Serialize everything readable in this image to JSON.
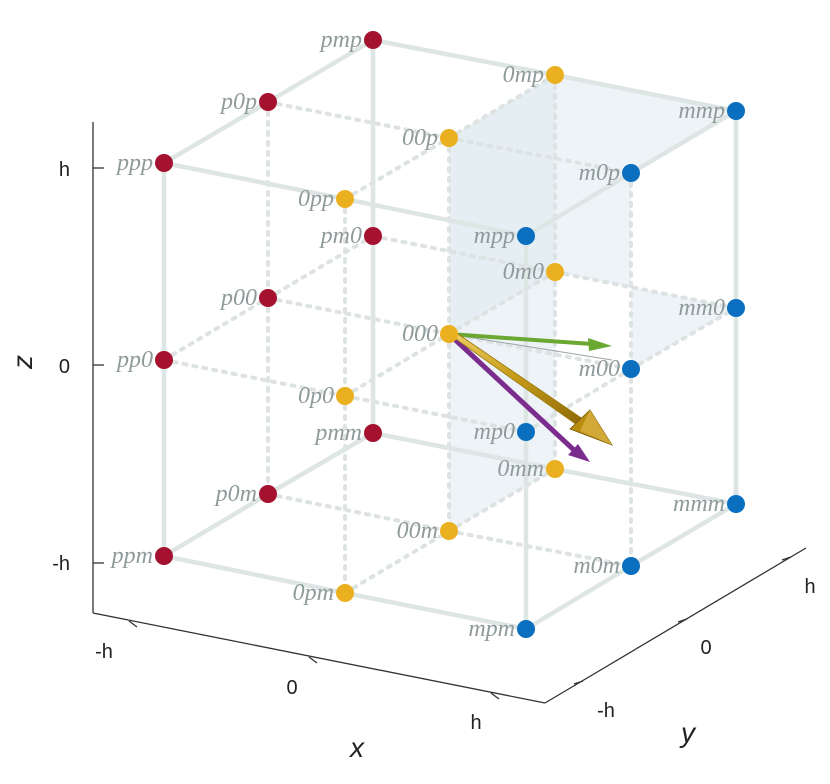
{
  "axes": {
    "x": {
      "title": "x",
      "ticks": [
        "-h",
        "0",
        "h"
      ]
    },
    "y": {
      "title": "y",
      "ticks": [
        "-h",
        "0",
        "h"
      ]
    },
    "z": {
      "title": "z",
      "ticks": [
        "-h",
        "0",
        "h"
      ]
    }
  },
  "colors": {
    "red": "#a4122f",
    "yellow": "#ebb020",
    "blue": "#0b6fbf",
    "edge": "#dde6e4",
    "label": "#8f9a9a",
    "arrow_green": "#6aa832",
    "arrow_gold": "#c69a18",
    "arrow_purple": "#7b2d8e",
    "plane": "#dfe9f0"
  },
  "nodes": [
    {
      "label": "ppp",
      "color": "red"
    },
    {
      "label": "p0p",
      "color": "red"
    },
    {
      "label": "pmp",
      "color": "red"
    },
    {
      "label": "pp0",
      "color": "red"
    },
    {
      "label": "p00",
      "color": "red"
    },
    {
      "label": "pm0",
      "color": "red"
    },
    {
      "label": "ppm",
      "color": "red"
    },
    {
      "label": "p0m",
      "color": "red"
    },
    {
      "label": "pmm",
      "color": "red"
    },
    {
      "label": "0pp",
      "color": "yellow"
    },
    {
      "label": "00p",
      "color": "yellow"
    },
    {
      "label": "0mp",
      "color": "yellow"
    },
    {
      "label": "0p0",
      "color": "yellow"
    },
    {
      "label": "000",
      "color": "yellow"
    },
    {
      "label": "0m0",
      "color": "yellow"
    },
    {
      "label": "0pm",
      "color": "yellow"
    },
    {
      "label": "00m",
      "color": "yellow"
    },
    {
      "label": "0mm",
      "color": "yellow"
    },
    {
      "label": "mpp",
      "color": "blue"
    },
    {
      "label": "m0p",
      "color": "blue"
    },
    {
      "label": "mmp",
      "color": "blue"
    },
    {
      "label": "mp0",
      "color": "blue"
    },
    {
      "label": "m00",
      "color": "blue"
    },
    {
      "label": "mm0",
      "color": "blue"
    },
    {
      "label": "mpm",
      "color": "blue"
    },
    {
      "label": "m0m",
      "color": "blue"
    },
    {
      "label": "mmm",
      "color": "blue"
    }
  ]
}
